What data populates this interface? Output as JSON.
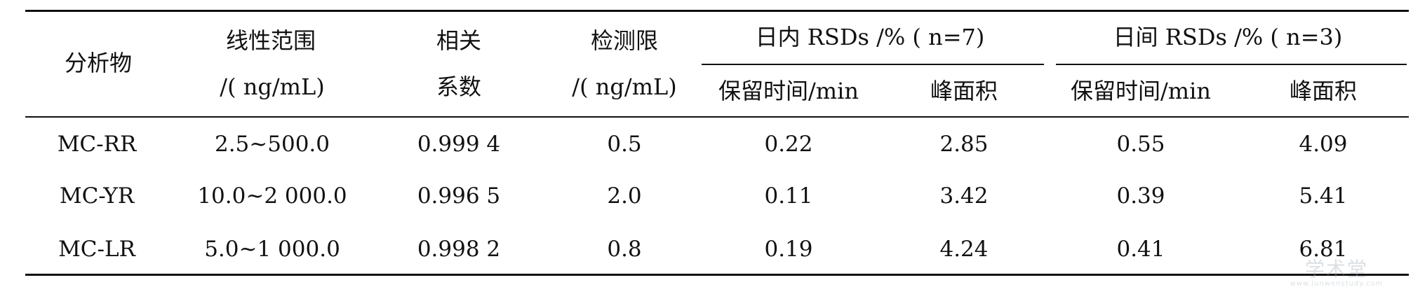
{
  "table": {
    "headers": {
      "analyte": "分析物",
      "linear_range": "线性范围",
      "linear_range_unit": "/( ng/mL)",
      "correlation_line1": "相关",
      "correlation_line2": "系数",
      "detection_limit": "检测限",
      "detection_limit_unit": "/( ng/mL)",
      "intra_group": "日内 RSDs /% ( n=7)",
      "inter_group": "日间 RSDs /% ( n=3)",
      "intra_retention_time": "保留时间/min",
      "intra_peak_area": "峰面积",
      "inter_retention_time": "保留时间/min",
      "inter_peak_area": "峰面积"
    },
    "rows": [
      {
        "analyte": "MC-RR",
        "linear_range": "2.5~500.0",
        "correlation": "0.999 4",
        "detection_limit": "0.5",
        "intra_retention_time": "0.22",
        "intra_peak_area": "2.85",
        "inter_retention_time": "0.55",
        "inter_peak_area": "4.09"
      },
      {
        "analyte": "MC-YR",
        "linear_range": "10.0~2 000.0",
        "correlation": "0.996 5",
        "detection_limit": "2.0",
        "intra_retention_time": "0.11",
        "intra_peak_area": "3.42",
        "inter_retention_time": "0.39",
        "inter_peak_area": "5.41"
      },
      {
        "analyte": "MC-LR",
        "linear_range": "5.0~1 000.0",
        "correlation": "0.998 2",
        "detection_limit": "0.8",
        "intra_retention_time": "0.19",
        "intra_peak_area": "4.24",
        "inter_retention_time": "0.41",
        "inter_peak_area": "6.81"
      }
    ]
  },
  "watermark": {
    "text": "学术堂",
    "subtext": "www.lunwenstudy.com"
  }
}
